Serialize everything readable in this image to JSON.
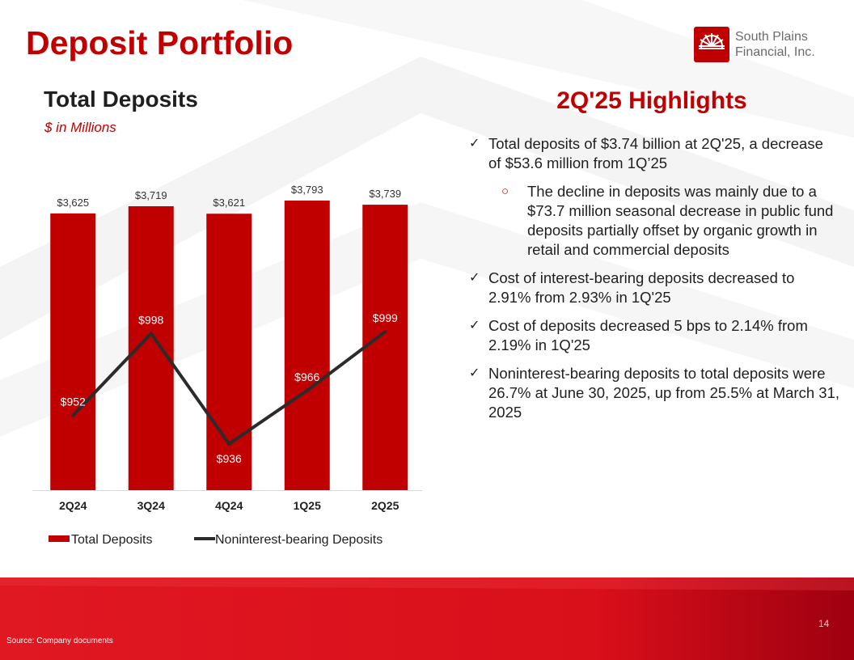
{
  "header": {
    "title": "Deposit Portfolio"
  },
  "logo": {
    "line1": "South Plains",
    "line2": "Financial, Inc."
  },
  "chart_panel": {
    "title": "Total Deposits",
    "subtitle": "$ in Millions"
  },
  "chart_data": {
    "type": "bar",
    "categories": [
      "2Q24",
      "3Q24",
      "4Q24",
      "1Q25",
      "2Q25"
    ],
    "series": [
      {
        "name": "Total Deposits",
        "type": "bar",
        "values": [
          3625,
          3719,
          3621,
          3793,
          3739
        ],
        "labels": [
          "$3,625",
          "$3,719",
          "$3,621",
          "$3,793",
          "$3,739"
        ],
        "color": "#c00000"
      },
      {
        "name": "Noninterest-bearing Deposits",
        "type": "line",
        "values": [
          952,
          998,
          936,
          966,
          999
        ],
        "labels": [
          "$952",
          "$998",
          "$936",
          "$966",
          "$999"
        ],
        "color": "#2b2b2b"
      }
    ],
    "legend_position": "bottom",
    "grid": false
  },
  "highlights": {
    "title": "2Q'25 Highlights",
    "items": [
      {
        "level": 1,
        "text": "Total deposits of $3.74 billion at 2Q'25, a decrease of $53.6 million from 1Q’25"
      },
      {
        "level": 2,
        "text": "The decline in deposits was mainly due to a $73.7 million seasonal decrease in public fund deposits partially offset by organic growth in retail and commercial deposits"
      },
      {
        "level": 1,
        "text": "Cost of interest-bearing deposits decreased to 2.91% from 2.93% in 1Q'25"
      },
      {
        "level": 1,
        "text": "Cost of deposits decreased 5 bps to 2.14% from 2.19% in 1Q'25"
      },
      {
        "level": 1,
        "text": "Noninterest-bearing deposits to total deposits were 26.7% at June 30, 2025, up from 25.5% at March 31, 2025"
      }
    ]
  },
  "footer": {
    "source": "Source: Company documents",
    "page_number": "14"
  },
  "colors": {
    "brand_red": "#c00000",
    "line_dark": "#2b2b2b",
    "footer_red": "#e0141e"
  }
}
